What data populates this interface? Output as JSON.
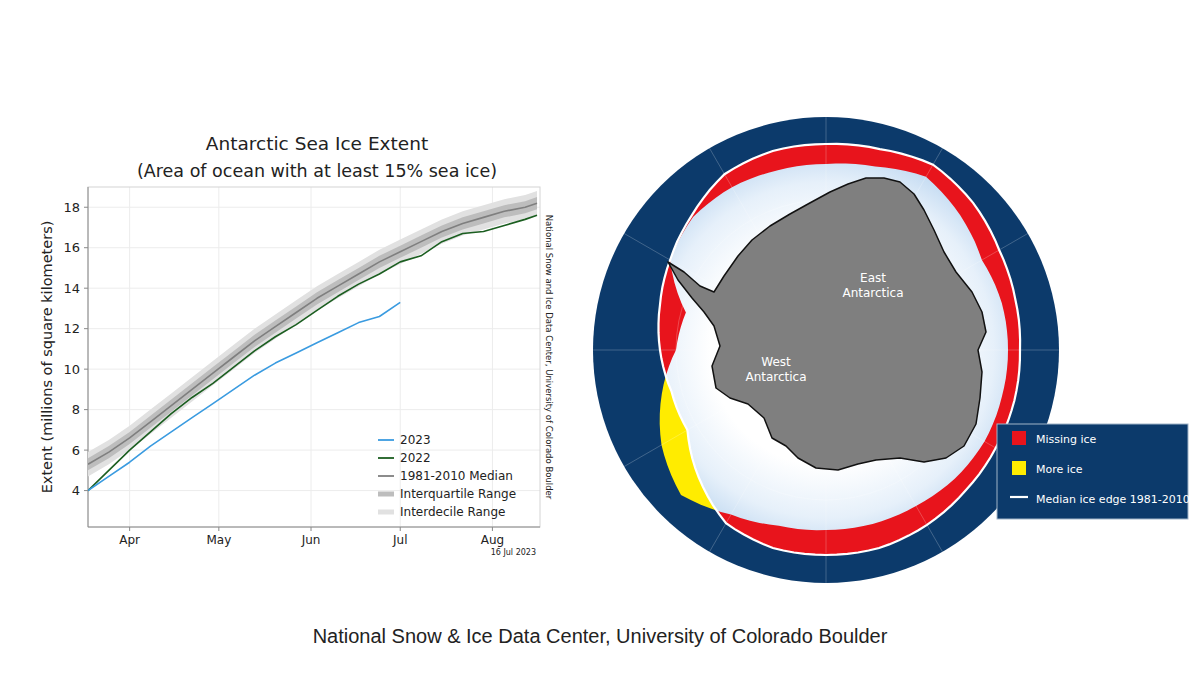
{
  "chart_data": {
    "type": "line",
    "title": "Antarctic Sea Ice Extent",
    "subtitle": "(Area of ocean with at least 15% sea ice)",
    "ylabel": "Extent (millions of square kilometers)",
    "annotations": [
      "National Snow and Ice Data Center, University of Colorado Boulder",
      "16 Jul 2023"
    ],
    "x": [
      0,
      7,
      14,
      21,
      28,
      35,
      42,
      49,
      56,
      63,
      70,
      77,
      84,
      91,
      98,
      105,
      112,
      119,
      126,
      133,
      140,
      147,
      151
    ],
    "xlim": [
      0,
      152
    ],
    "xticks": [
      {
        "value": 14,
        "label": "Apr"
      },
      {
        "value": 44,
        "label": "May"
      },
      {
        "value": 75,
        "label": "Jun"
      },
      {
        "value": 105,
        "label": "Jul"
      },
      {
        "value": 136,
        "label": "Aug"
      }
    ],
    "ylim": [
      2.2,
      19
    ],
    "yticks": [
      4,
      6,
      8,
      10,
      12,
      14,
      16,
      18
    ],
    "grid": true,
    "legend": "lower right",
    "series": [
      {
        "name": "2023",
        "type": "line",
        "color": "#3a9be0",
        "values": [
          4.0,
          4.7,
          5.4,
          6.2,
          6.9,
          7.6,
          8.3,
          9.0,
          9.7,
          10.3,
          10.8,
          11.3,
          11.8,
          12.3,
          12.6,
          13.3,
          null,
          null,
          null,
          null,
          null,
          null,
          null
        ]
      },
      {
        "name": "2022",
        "type": "line",
        "color": "#1b5e20",
        "values": [
          4.0,
          5.0,
          6.0,
          6.9,
          7.8,
          8.6,
          9.3,
          10.1,
          10.9,
          11.6,
          12.2,
          12.9,
          13.6,
          14.2,
          14.7,
          15.3,
          15.6,
          16.3,
          16.7,
          16.8,
          17.1,
          17.4,
          17.6
        ]
      },
      {
        "name": "1981-2010 Median",
        "type": "line",
        "color": "#7f7f7f",
        "values": [
          5.3,
          5.9,
          6.6,
          7.4,
          8.2,
          9.0,
          9.8,
          10.6,
          11.4,
          12.1,
          12.8,
          13.5,
          14.1,
          14.7,
          15.3,
          15.8,
          16.3,
          16.8,
          17.2,
          17.5,
          17.8,
          18.0,
          18.2
        ]
      },
      {
        "name": "Interquartile Range",
        "type": "area",
        "color": "#bdbdbd",
        "lower": [
          5.0,
          5.6,
          6.3,
          7.1,
          7.9,
          8.7,
          9.5,
          10.3,
          11.1,
          11.8,
          12.5,
          13.2,
          13.8,
          14.4,
          15.0,
          15.5,
          16.0,
          16.5,
          16.9,
          17.2,
          17.5,
          17.7,
          17.9
        ],
        "upper": [
          5.6,
          6.2,
          6.9,
          7.7,
          8.5,
          9.3,
          10.1,
          10.9,
          11.7,
          12.4,
          13.1,
          13.8,
          14.4,
          15.0,
          15.6,
          16.1,
          16.6,
          17.1,
          17.5,
          17.8,
          18.1,
          18.3,
          18.5
        ]
      },
      {
        "name": "Interdecile Range",
        "type": "area",
        "color": "#e1e1e1",
        "lower": [
          4.7,
          5.3,
          6.0,
          6.8,
          7.6,
          8.4,
          9.2,
          10.0,
          10.8,
          11.5,
          12.2,
          12.9,
          13.5,
          14.1,
          14.7,
          15.2,
          15.7,
          16.2,
          16.6,
          16.9,
          17.2,
          17.4,
          17.6
        ],
        "upper": [
          5.9,
          6.5,
          7.2,
          8.0,
          8.8,
          9.6,
          10.4,
          11.2,
          12.0,
          12.7,
          13.4,
          14.1,
          14.7,
          15.3,
          15.9,
          16.4,
          16.9,
          17.4,
          17.8,
          18.1,
          18.4,
          18.6,
          18.8
        ]
      }
    ]
  },
  "map": {
    "region_labels": [
      [
        "East",
        "Antarctica"
      ],
      [
        "West",
        "Antarctica"
      ]
    ],
    "legend": [
      {
        "label": "Missing ice",
        "color": "#e8141c"
      },
      {
        "label": "More ice",
        "color": "#ffec00"
      },
      {
        "label": "Median ice edge 1981-2010",
        "color": "#ffffff"
      }
    ]
  },
  "footer": "National Snow & Ice Data Center, University of Colorado Boulder"
}
